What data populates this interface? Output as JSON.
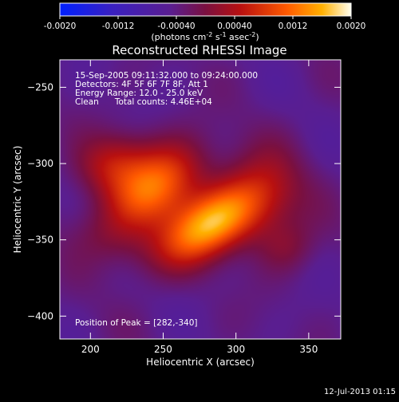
{
  "colorbar": {
    "tick_labels": [
      "-0.0020",
      "-0.0012",
      "-0.00040",
      "0.00040",
      "0.0012",
      "0.0020"
    ],
    "range": [
      -0.002,
      0.002
    ],
    "unit_label": "(photons cm",
    "unit_sup1": "-2",
    "unit_mid": " s",
    "unit_sup2": "-1",
    "unit_mid2": " asec",
    "unit_sup3": "-2",
    "unit_end": ")"
  },
  "chart_data": {
    "type": "heatmap",
    "title": "Reconstructed RHESSI Image",
    "xlabel": "Heliocentric X (arcsec)",
    "ylabel": "Heliocentric Y (arcsec)",
    "xlim": [
      179,
      372
    ],
    "ylim": [
      -415,
      -232
    ],
    "xticks": [
      200,
      250,
      300,
      350
    ],
    "yticks": [
      -250,
      -300,
      -350,
      -400
    ],
    "annotations": [
      "15-Sep-2005 09:11:32.000 to 09:24:00.000",
      "Detectors: 4F 5F 6F 7F 8F, Att 1",
      "Energy Range: 12.0 - 25.0 keV",
      "Clean      Total counts: 4.46E+04"
    ],
    "peak_label": "Position of Peak = [282,-340]",
    "peak": [
      282,
      -340
    ],
    "sources": [
      {
        "x": 282,
        "y": -340,
        "amp": 0.002,
        "sx": 26,
        "sy": 14,
        "angle": -30
      },
      {
        "x": 245,
        "y": -315,
        "amp": 0.0016,
        "sx": 24,
        "sy": 16,
        "angle": -35
      },
      {
        "x": 215,
        "y": -300,
        "amp": 0.0008,
        "sx": 18,
        "sy": 14,
        "angle": -20
      },
      {
        "x": 320,
        "y": -320,
        "amp": 0.0007,
        "sx": 20,
        "sy": 22,
        "angle": 0
      },
      {
        "x": 335,
        "y": -355,
        "amp": 0.0004,
        "sx": 14,
        "sy": 12,
        "angle": 0
      },
      {
        "x": 215,
        "y": -350,
        "amp": 0.0004,
        "sx": 22,
        "sy": 14,
        "angle": 20
      }
    ]
  },
  "timestamp": "12-Jul-2013 01:15"
}
